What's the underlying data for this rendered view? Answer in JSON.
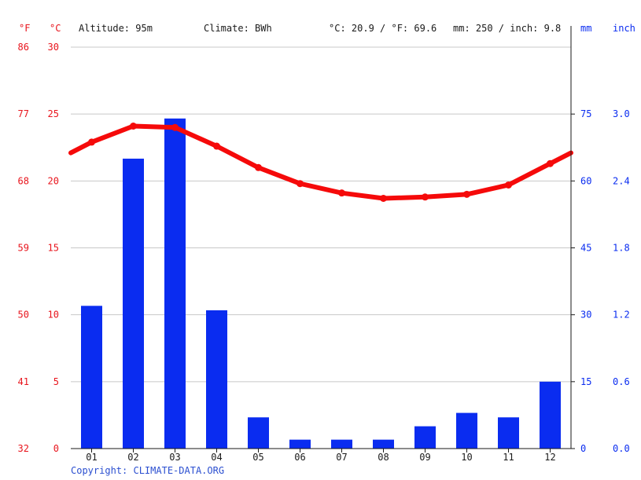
{
  "header": {
    "unit_f": "°F",
    "unit_c": "°C",
    "altitude": "Altitude: 95m",
    "climate": "Climate: BWh",
    "temp_summary": "°C: 20.9 / °F: 69.6",
    "precip_summary": "mm: 250 / inch: 9.8",
    "unit_mm": "mm",
    "unit_inch": "inch"
  },
  "copyright": "Copyright: CLIMATE-DATA.ORG",
  "colors": {
    "temperature": "#f50a0a",
    "precipitation": "#0a2cf0",
    "grid": "#c8c8c8",
    "axis": "#1a1a1a"
  },
  "chart_data": {
    "type": "bar+line",
    "categories": [
      "01",
      "02",
      "03",
      "04",
      "05",
      "06",
      "07",
      "08",
      "09",
      "10",
      "11",
      "12"
    ],
    "series": [
      {
        "type": "bar",
        "axis": "right",
        "values": [
          32,
          65,
          74,
          31,
          7,
          2,
          2,
          2,
          5,
          8,
          7,
          15
        ]
      },
      {
        "type": "line",
        "axis": "left",
        "values": [
          22.9,
          24.1,
          24.0,
          22.6,
          21.0,
          19.8,
          19.1,
          18.7,
          18.8,
          19.0,
          19.7,
          21.3
        ]
      }
    ],
    "left_axis": {
      "ticks_c": [
        "30",
        "25",
        "20",
        "15",
        "10",
        "5",
        "0"
      ],
      "ticks_f": [
        "86",
        "77",
        "68",
        "59",
        "50",
        "41",
        "32"
      ],
      "ylim": [
        0,
        30
      ]
    },
    "right_axis": {
      "ticks_mm": [
        "75",
        "60",
        "45",
        "30",
        "15",
        "0"
      ],
      "ticks_inch": [
        "3.0",
        "2.4",
        "1.8",
        "1.2",
        "0.6",
        "0.0"
      ],
      "ylim": [
        0,
        90
      ]
    },
    "grid": true
  }
}
